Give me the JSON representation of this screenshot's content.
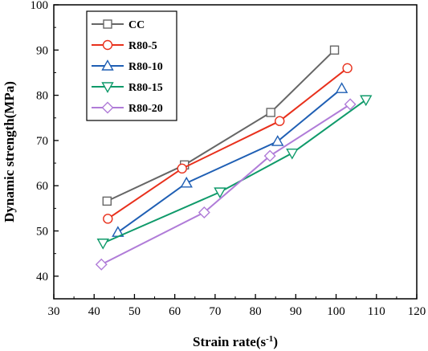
{
  "chart_data": {
    "type": "line",
    "xlabel": "Strain rate(s",
    "xlabel_sup": "-1",
    "xlabel_end": ")",
    "ylabel": "Dynamic strength(MPa)",
    "xlim": [
      30,
      120
    ],
    "ylim": [
      35,
      100
    ],
    "xticks": [
      30,
      40,
      50,
      60,
      70,
      80,
      90,
      100,
      110,
      120
    ],
    "yticks": [
      40,
      50,
      60,
      70,
      80,
      90,
      100
    ],
    "grid": false,
    "legend_position": "top-left",
    "series": [
      {
        "name": "CC",
        "color": "#666666",
        "marker": "square",
        "points": [
          [
            43.2,
            56.6
          ],
          [
            62.4,
            64.6
          ],
          [
            83.8,
            76.2
          ],
          [
            99.6,
            90.0
          ]
        ]
      },
      {
        "name": "R80-5",
        "color": "#e8301c",
        "marker": "circle",
        "points": [
          [
            43.4,
            52.7
          ],
          [
            61.8,
            63.8
          ],
          [
            86.0,
            74.3
          ],
          [
            102.8,
            86.0
          ]
        ]
      },
      {
        "name": "R80-10",
        "color": "#1f5fb4",
        "marker": "triangle-up",
        "points": [
          [
            45.9,
            49.7
          ],
          [
            62.9,
            60.6
          ],
          [
            85.5,
            69.8
          ],
          [
            101.4,
            81.5
          ]
        ]
      },
      {
        "name": "R80-15",
        "color": "#0f9a6a",
        "marker": "triangle-down",
        "points": [
          [
            42.2,
            47.3
          ],
          [
            71.2,
            58.6
          ],
          [
            89.1,
            67.2
          ],
          [
            107.4,
            79.0
          ]
        ]
      },
      {
        "name": "R80-20",
        "color": "#b07cd8",
        "marker": "diamond",
        "points": [
          [
            41.8,
            42.6
          ],
          [
            67.3,
            54.1
          ],
          [
            83.6,
            66.6
          ],
          [
            103.5,
            78.0
          ]
        ]
      }
    ]
  }
}
